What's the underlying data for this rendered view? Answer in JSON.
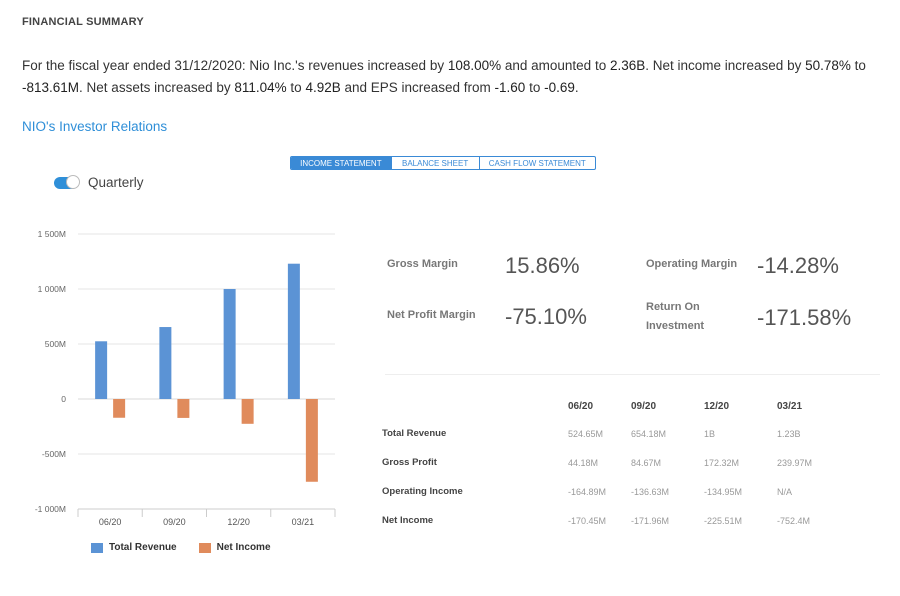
{
  "header": {
    "section_title": "FINANCIAL SUMMARY",
    "summary_line1_parts": [
      "For the fiscal year ended 31/12/2020: Nio Inc.'s revenues increased by ",
      "108.00%",
      " and amounted to ",
      "2.36B",
      ". Net income increased by ",
      "50.78%",
      " to"
    ],
    "summary_line2_parts": [
      "-813.61M",
      ". Net assets increased by ",
      "811.04%",
      " to ",
      "4.92B",
      " and EPS increased from ",
      "-1.60",
      " to ",
      "-0.69",
      "."
    ],
    "ir_link": "NIO's Investor Relations"
  },
  "tabs": [
    "INCOME STATEMENT",
    "BALANCE SHEET",
    "CASH FLOW STATEMENT"
  ],
  "active_tab": "INCOME STATEMENT",
  "toggle": {
    "label": "Quarterly",
    "on": true
  },
  "ratios": {
    "gross_margin": {
      "label": "Gross Margin",
      "value": "15.86%"
    },
    "operating_margin": {
      "label": "Operating Margin",
      "value": "-14.28%"
    },
    "net_profit_margin": {
      "label": "Net Profit Margin",
      "value": "-75.10%"
    },
    "return_on_investment": {
      "label_line1": "Return On",
      "label_line2": "Investment",
      "value": "-171.58%"
    }
  },
  "table": {
    "columns": [
      "06/20",
      "09/20",
      "12/20",
      "03/21"
    ],
    "rows": [
      {
        "label": "Total Revenue",
        "values": [
          "524.65M",
          "654.18M",
          "1B",
          "1.23B"
        ]
      },
      {
        "label": "Gross Profit",
        "values": [
          "44.18M",
          "84.67M",
          "172.32M",
          "239.97M"
        ]
      },
      {
        "label": "Operating Income",
        "values": [
          "-164.89M",
          "-136.63M",
          "-134.95M",
          "N/A"
        ]
      },
      {
        "label": "Net Income",
        "values": [
          "-170.45M",
          "-171.96M",
          "-225.51M",
          "-752.4M"
        ]
      }
    ]
  },
  "chart_data": {
    "type": "bar",
    "categories": [
      "06/20",
      "09/20",
      "12/20",
      "03/21"
    ],
    "series": [
      {
        "name": "Total Revenue",
        "values": [
          524.65,
          654.18,
          1000,
          1230
        ],
        "color": "#5b93d5"
      },
      {
        "name": "Net Income",
        "values": [
          -170.45,
          -171.96,
          -225.51,
          -752.4
        ],
        "color": "#e08b5c"
      }
    ],
    "ylim": [
      -1000,
      1500
    ],
    "yticks": [
      1500,
      1000,
      500,
      0,
      -500,
      -1000
    ],
    "ytick_labels": [
      "1 500M",
      "1 000M",
      "500M",
      "0",
      "-500M",
      "-1 000M"
    ],
    "grid": true,
    "legend": "bottom"
  }
}
